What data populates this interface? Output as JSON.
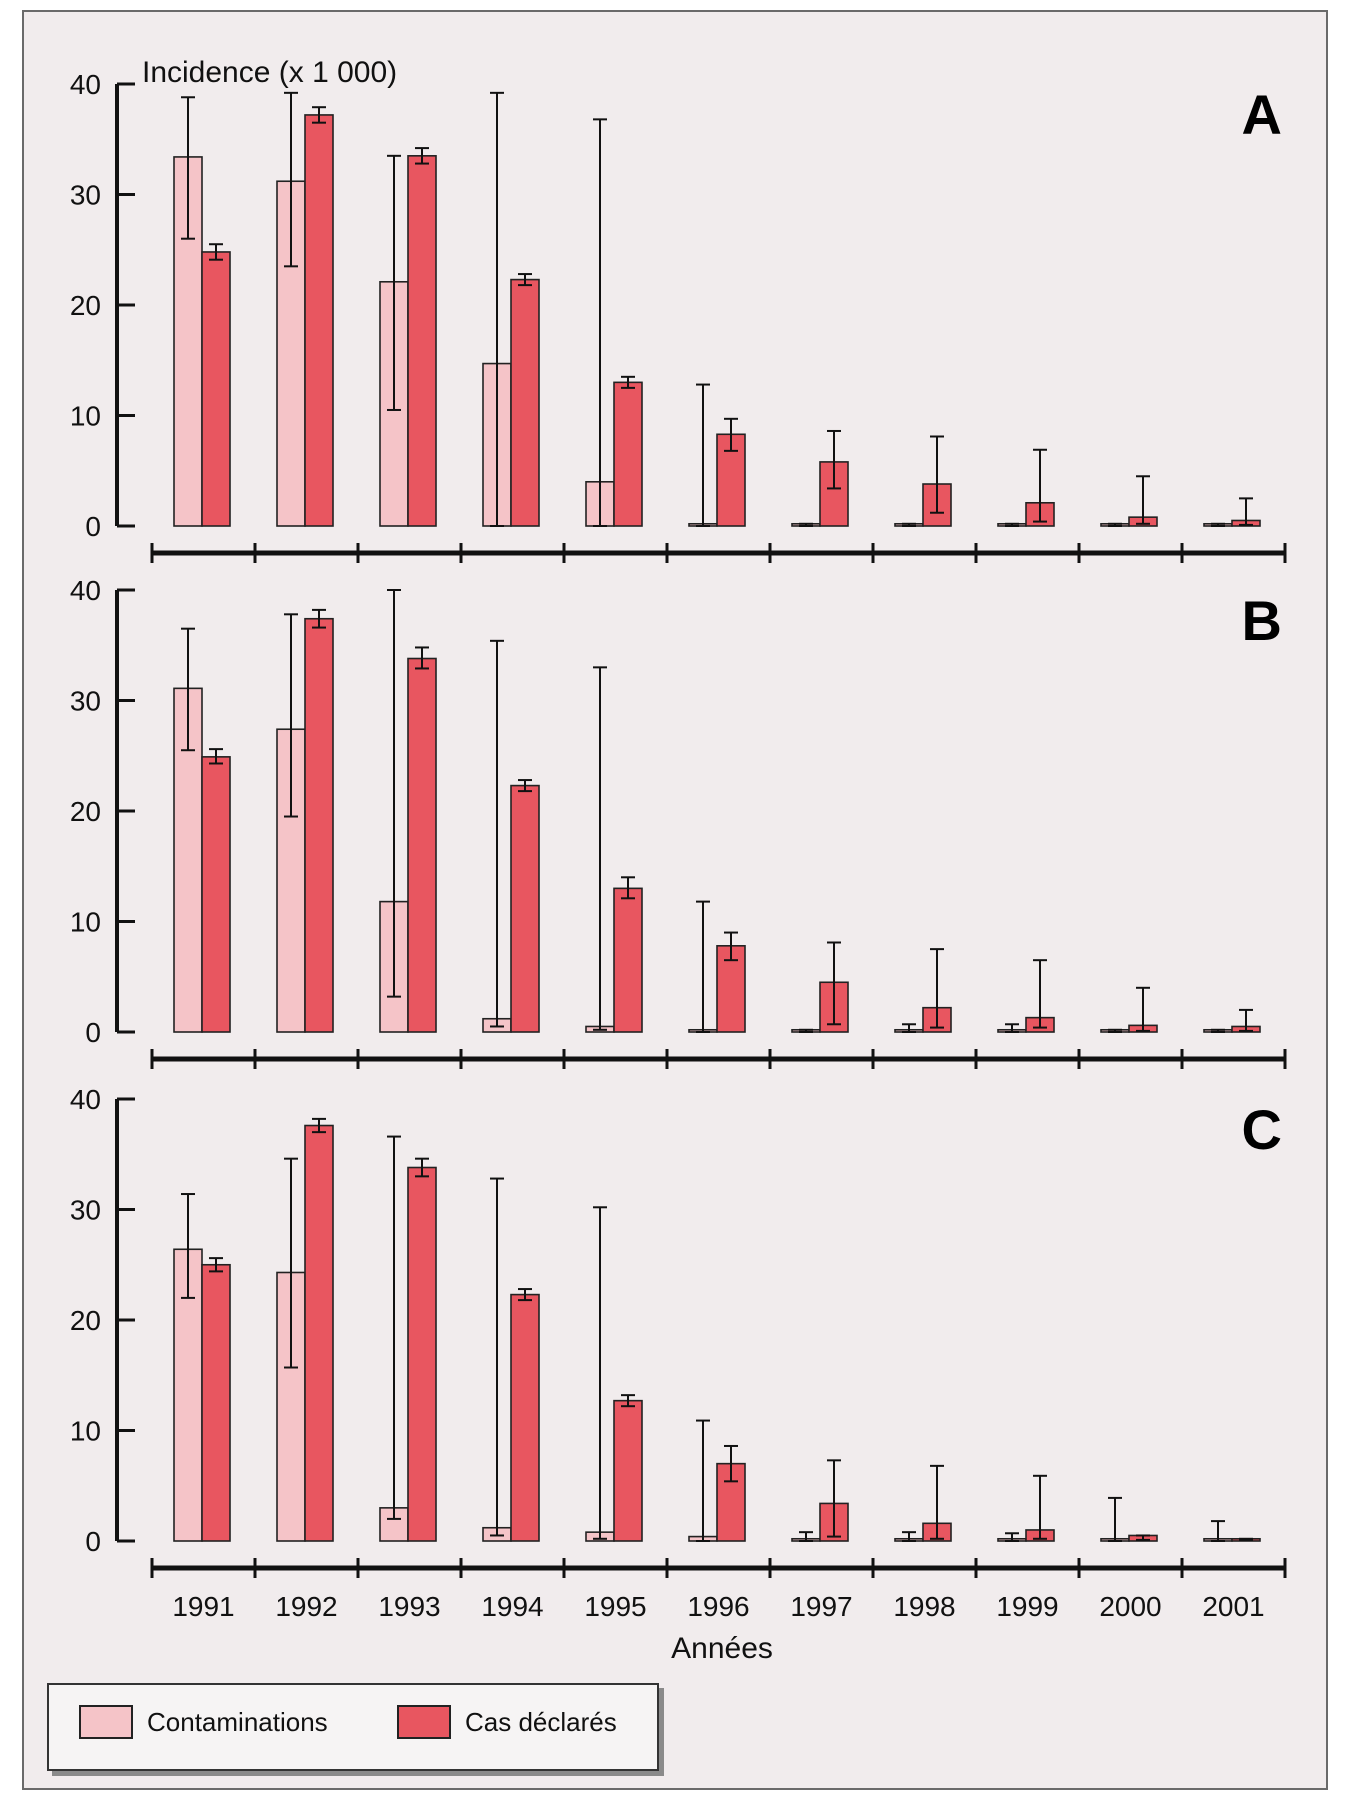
{
  "chart_data": {
    "type": "bar",
    "ylabel": "Incidence (x 1 000)",
    "xlabel": "Années",
    "ylim": [
      0,
      40
    ],
    "yticks": [
      0,
      10,
      20,
      30,
      40
    ],
    "categories": [
      "1991",
      "1992",
      "1993",
      "1994",
      "1995",
      "1996",
      "1997",
      "1998",
      "1999",
      "2000",
      "2001"
    ],
    "colors": {
      "contaminations": "#f5c4c8",
      "cas_declares": "#e85660"
    },
    "legend_position": "bottom-left",
    "panels": [
      {
        "label": "A",
        "series": [
          {
            "name": "Contaminations",
            "values": [
              33.4,
              31.2,
              22.1,
              14.7,
              4.0,
              0.2,
              0.2,
              0.2,
              0.2,
              0.2,
              0.2
            ],
            "err_low": [
              26.0,
              23.5,
              10.5,
              0,
              0,
              0,
              0,
              0,
              0,
              0,
              0
            ],
            "err_high": [
              38.8,
              39.2,
              33.5,
              39.2,
              36.8,
              12.8,
              0.2,
              0.2,
              0.2,
              0.2,
              0.2
            ]
          },
          {
            "name": "Cas déclarés",
            "values": [
              24.8,
              37.2,
              33.5,
              22.3,
              13.0,
              8.3,
              5.8,
              3.8,
              2.1,
              0.8,
              0.5
            ],
            "err_low": [
              24.1,
              36.5,
              32.8,
              21.8,
              12.5,
              6.8,
              3.4,
              1.2,
              0.4,
              0.2,
              0.1
            ],
            "err_high": [
              25.5,
              37.9,
              34.2,
              22.8,
              13.5,
              9.7,
              8.6,
              8.1,
              6.9,
              4.5,
              2.5
            ]
          }
        ]
      },
      {
        "label": "B",
        "series": [
          {
            "name": "Contaminations",
            "values": [
              31.1,
              27.4,
              11.8,
              1.2,
              0.5,
              0.2,
              0.2,
              0.2,
              0.2,
              0.2,
              0.2
            ],
            "err_low": [
              25.5,
              19.5,
              3.2,
              0.5,
              0.2,
              0,
              0,
              0,
              0,
              0,
              0
            ],
            "err_high": [
              36.5,
              37.8,
              40.0,
              35.4,
              33.0,
              11.8,
              0.2,
              0.7,
              0.7,
              0.2,
              0.2
            ]
          },
          {
            "name": "Cas déclarés",
            "values": [
              24.9,
              37.4,
              33.8,
              22.3,
              13.0,
              7.8,
              4.5,
              2.2,
              1.3,
              0.6,
              0.5
            ],
            "err_low": [
              24.3,
              36.6,
              32.9,
              21.8,
              12.1,
              6.5,
              0.7,
              0.4,
              0.4,
              0.1,
              0.1
            ],
            "err_high": [
              25.6,
              38.2,
              34.8,
              22.8,
              14.0,
              9.0,
              8.1,
              7.5,
              6.5,
              4.0,
              2.0
            ]
          }
        ]
      },
      {
        "label": "C",
        "series": [
          {
            "name": "Contaminations",
            "values": [
              26.4,
              24.3,
              3.0,
              1.2,
              0.8,
              0.4,
              0.2,
              0.2,
              0.2,
              0.2,
              0.2
            ],
            "err_low": [
              22.0,
              15.7,
              2.0,
              0.5,
              0.2,
              0,
              0,
              0,
              0,
              0,
              0
            ],
            "err_high": [
              31.4,
              34.6,
              36.6,
              32.8,
              30.2,
              10.9,
              0.8,
              0.8,
              0.7,
              3.9,
              1.8
            ]
          },
          {
            "name": "Cas déclarés",
            "values": [
              25.0,
              37.6,
              33.8,
              22.3,
              12.7,
              7.0,
              3.4,
              1.6,
              1.0,
              0.5,
              0.2
            ],
            "err_low": [
              24.4,
              37.0,
              33.0,
              21.8,
              12.2,
              5.4,
              0.4,
              0.2,
              0.2,
              0.1,
              0.1
            ],
            "err_high": [
              25.6,
              38.2,
              34.6,
              22.8,
              13.2,
              8.6,
              7.3,
              6.8,
              5.9,
              0.5,
              0.2
            ]
          }
        ]
      }
    ]
  },
  "legend": {
    "items": [
      {
        "label": "Contaminations",
        "color": "#f5c4c8"
      },
      {
        "label": "Cas déclarés",
        "color": "#e85660"
      }
    ]
  }
}
